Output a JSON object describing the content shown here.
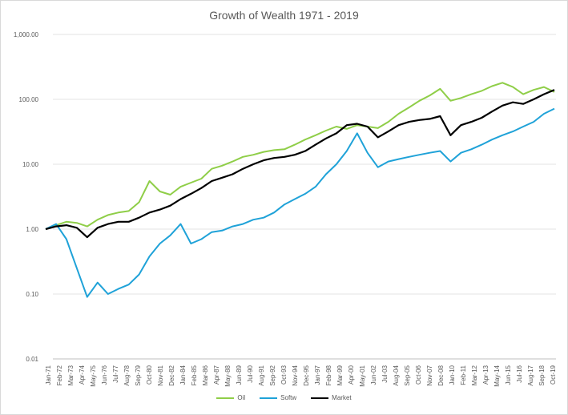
{
  "chart_data": {
    "type": "line",
    "title": "Growth of Wealth 1971 - 2019",
    "xlabel": "",
    "ylabel": "",
    "y_scale": "log",
    "ylim": [
      0.01,
      1000
    ],
    "y_ticks": [
      "1,000.00",
      "100.00",
      "10.00",
      "1.00",
      "0.10",
      "0.01"
    ],
    "grid": true,
    "legend_position": "bottom",
    "x_ticks": [
      "Jan-71",
      "Feb-72",
      "Mar-73",
      "Apr-74",
      "May-75",
      "Jun-76",
      "Jul-77",
      "Aug-78",
      "Sep-79",
      "Oct-80",
      "Nov-81",
      "Dec-82",
      "Jan-84",
      "Feb-85",
      "Mar-86",
      "Apr-87",
      "May-88",
      "Jun-89",
      "Jul-90",
      "Aug-91",
      "Sep-92",
      "Oct-93",
      "Nov-94",
      "Dec-95",
      "Jan-97",
      "Feb-98",
      "Mar-99",
      "Apr-00",
      "May-01",
      "Jun-02",
      "Jul-03",
      "Aug-04",
      "Sep-05",
      "Oct-06",
      "Nov-07",
      "Dec-08",
      "Jan-10",
      "Feb-11",
      "Mar-12",
      "Apr-13",
      "May-14",
      "Jun-15",
      "Jul-16",
      "Aug-17",
      "Sep-18",
      "Oct-19"
    ],
    "x": [
      "Jan-71",
      "Jan-72",
      "Jan-73",
      "Jan-74",
      "Jan-75",
      "Jan-76",
      "Jan-77",
      "Jan-78",
      "Jan-79",
      "Jan-80",
      "Jan-81",
      "Jan-82",
      "Jan-83",
      "Jan-84",
      "Jan-85",
      "Jan-86",
      "Jan-87",
      "Jan-88",
      "Jan-89",
      "Jan-90",
      "Jan-91",
      "Jan-92",
      "Jan-93",
      "Jan-94",
      "Jan-95",
      "Jan-96",
      "Jan-97",
      "Jan-98",
      "Jan-99",
      "Jan-00",
      "Jan-01",
      "Jan-02",
      "Jan-03",
      "Jan-04",
      "Jan-05",
      "Jan-06",
      "Jan-07",
      "Jan-08",
      "Jan-09",
      "Jan-10",
      "Jan-11",
      "Jan-12",
      "Jan-13",
      "Jan-14",
      "Jan-15",
      "Jan-16",
      "Jan-17",
      "Jan-18",
      "Jan-19",
      "Dec-19"
    ],
    "series": [
      {
        "name": "Oil",
        "color": "#8fce48",
        "values": [
          1.0,
          1.15,
          1.3,
          1.25,
          1.1,
          1.4,
          1.65,
          1.8,
          1.9,
          2.6,
          5.5,
          3.8,
          3.4,
          4.5,
          5.2,
          6.0,
          8.5,
          9.5,
          11.0,
          13.0,
          14.0,
          15.5,
          16.5,
          17.0,
          20.0,
          24.0,
          28.0,
          33.0,
          38.0,
          35.0,
          40.0,
          38.0,
          36.0,
          45.0,
          60.0,
          75.0,
          95.0,
          115.0,
          145.0,
          95.0,
          105.0,
          120.0,
          135.0,
          160.0,
          180.0,
          155.0,
          120.0,
          140.0,
          155.0,
          130.0
        ]
      },
      {
        "name": "Softw",
        "color": "#1fa2d8",
        "values": [
          1.0,
          1.2,
          0.7,
          0.25,
          0.09,
          0.15,
          0.1,
          0.12,
          0.14,
          0.2,
          0.38,
          0.6,
          0.8,
          1.2,
          0.6,
          0.7,
          0.9,
          0.95,
          1.1,
          1.2,
          1.4,
          1.5,
          1.8,
          2.4,
          2.9,
          3.5,
          4.5,
          7.0,
          10.0,
          16.0,
          30.0,
          15.0,
          9.0,
          11.0,
          12.0,
          13.0,
          14.0,
          15.0,
          16.0,
          11.0,
          15.0,
          17.0,
          20.0,
          24.0,
          28.0,
          32.0,
          38.0,
          45.0,
          60.0,
          72.0
        ]
      },
      {
        "name": "Market",
        "color": "#000000",
        "values": [
          1.0,
          1.1,
          1.15,
          1.05,
          0.75,
          1.05,
          1.2,
          1.3,
          1.3,
          1.5,
          1.8,
          2.0,
          2.3,
          2.9,
          3.5,
          4.3,
          5.5,
          6.2,
          7.0,
          8.5,
          10.0,
          11.5,
          12.5,
          13.0,
          14.0,
          16.0,
          20.0,
          25.0,
          30.0,
          40.0,
          42.0,
          38.0,
          26.0,
          32.0,
          40.0,
          45.0,
          48.0,
          50.0,
          55.0,
          28.0,
          40.0,
          45.0,
          52.0,
          65.0,
          80.0,
          90.0,
          85.0,
          100.0,
          120.0,
          140.0
        ]
      }
    ]
  }
}
